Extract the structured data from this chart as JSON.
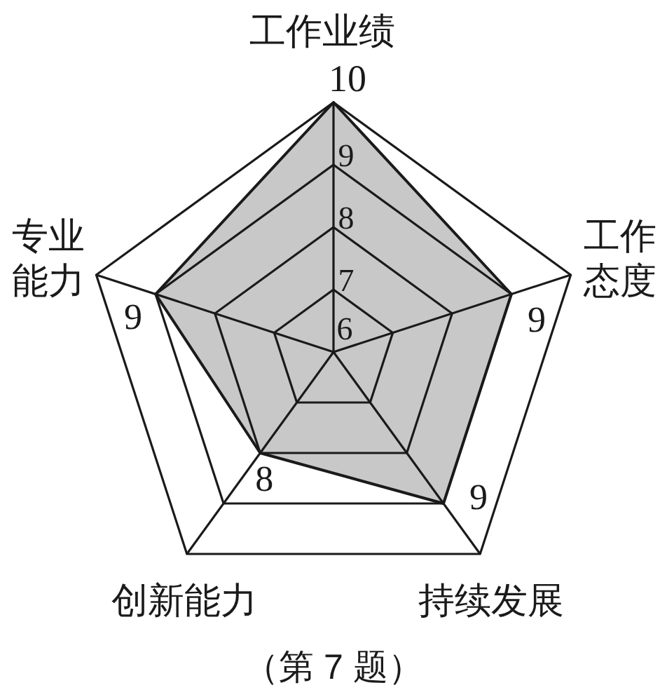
{
  "chart_data": {
    "type": "radar",
    "categories": [
      "工作业绩",
      "工作态度",
      "持续发展",
      "创新能力",
      "专业能力"
    ],
    "series": [
      {
        "color": "#c8c8c8",
        "values": [
          10,
          9,
          9,
          8,
          9
        ],
        "value_labels": [
          null,
          "9",
          "9",
          "8",
          "9"
        ]
      }
    ],
    "ylim": [
      6,
      10
    ],
    "yticks": [
      6,
      7,
      8,
      9,
      10
    ],
    "grid": true,
    "annotations": [
      "（第 7 题）"
    ]
  }
}
